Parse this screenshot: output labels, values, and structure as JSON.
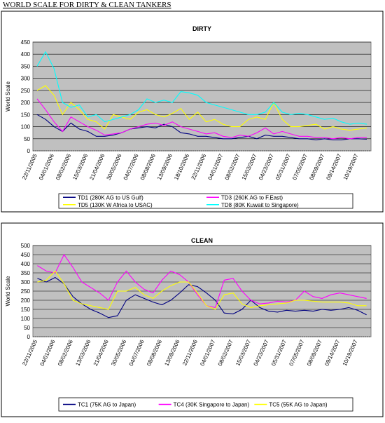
{
  "page_title": "WORLD SCALE FOR DIRTY & CLEAN TANKERS",
  "chart_data": [
    {
      "type": "line",
      "title": "DIRTY",
      "ylabel": "World Scale",
      "categories": [
        "22/11/2005",
        null,
        "04/01/2006",
        null,
        "08/02/2006",
        null,
        "15/03/2006",
        null,
        "21/04/2006",
        null,
        "30/05/2006",
        null,
        "04/07/2006",
        null,
        "08/08/2006",
        null,
        "13/09/2006",
        null,
        "18/10/2006",
        null,
        "22/11/2006",
        null,
        "04/01/2007",
        null,
        "08/02/2007",
        null,
        "15/03/2007",
        null,
        "04/23/2007",
        null,
        "05/31/2007",
        null,
        "07/05/2007",
        null,
        "08/09/2007",
        null,
        "09/14/2007",
        null,
        "10/19/2007",
        null
      ],
      "ylim": [
        0,
        450
      ],
      "yticks": [
        0,
        50,
        100,
        150,
        200,
        250,
        300,
        350,
        400,
        450
      ],
      "grid": true,
      "series": [
        {
          "name": "TD1 (280K AG to US Gulf)",
          "color": "#000080",
          "values": [
            150,
            130,
            100,
            80,
            115,
            90,
            80,
            60,
            60,
            65,
            75,
            90,
            95,
            100,
            95,
            110,
            100,
            75,
            70,
            60,
            60,
            55,
            50,
            50,
            55,
            60,
            50,
            65,
            60,
            60,
            55,
            50,
            50,
            45,
            50,
            45,
            45,
            50,
            50,
            48
          ]
        },
        {
          "name": "TD3 (260K AG to F.East)",
          "color": "#ff00ff",
          "values": [
            215,
            170,
            120,
            80,
            140,
            120,
            100,
            85,
            65,
            70,
            75,
            90,
            100,
            110,
            115,
            105,
            120,
            100,
            90,
            80,
            70,
            75,
            60,
            55,
            65,
            60,
            75,
            95,
            70,
            80,
            70,
            60,
            60,
            55,
            55,
            50,
            55,
            50,
            55,
            55
          ]
        },
        {
          "name": "TD5 (130K W Africa to USAC)",
          "color": "#ffff00",
          "values": [
            250,
            270,
            230,
            150,
            200,
            170,
            130,
            120,
            90,
            150,
            140,
            130,
            160,
            170,
            150,
            140,
            155,
            175,
            130,
            160,
            120,
            130,
            110,
            100,
            100,
            130,
            140,
            130,
            200,
            130,
            100,
            100,
            105,
            110,
            90,
            100,
            90,
            85,
            90,
            95
          ]
        },
        {
          "name": "TD8 (80K Kuwait to Singapore)",
          "color": "#00ffff",
          "values": [
            350,
            410,
            340,
            200,
            180,
            190,
            140,
            150,
            120,
            130,
            140,
            150,
            170,
            215,
            200,
            210,
            200,
            245,
            240,
            230,
            200,
            190,
            180,
            170,
            160,
            150,
            150,
            160,
            200,
            160,
            150,
            155,
            150,
            140,
            130,
            135,
            120,
            110,
            115,
            110
          ]
        }
      ]
    },
    {
      "type": "line",
      "title": "CLEAN",
      "ylabel": "World Scale",
      "categories": [
        "22/11/2005",
        null,
        "04/01/2006",
        null,
        "08/02/2006",
        null,
        "13/03/2006",
        null,
        "21/04/2006",
        null,
        "30/05/2006",
        null,
        "04/07/2006",
        null,
        "08/08/2006",
        null,
        "13/09/2006",
        null,
        "22/11/2006",
        null,
        "04/01/2007",
        null,
        "08/02/2007",
        null,
        "15/03/2007",
        null,
        "04/23/2007",
        null,
        "05/31/2007",
        null,
        "07/05/2007",
        null,
        "08/09/2007",
        null,
        "09/14/2007",
        null,
        "10/19/2007",
        null
      ],
      "ylim": [
        0,
        500
      ],
      "yticks": [
        0,
        50,
        100,
        150,
        200,
        250,
        300,
        350,
        400,
        450,
        500
      ],
      "grid": true,
      "series": [
        {
          "name": "TC1 (75K AG to Japan)",
          "color": "#000080",
          "values": [
            320,
            300,
            325,
            290,
            220,
            180,
            150,
            130,
            105,
            115,
            200,
            230,
            210,
            190,
            175,
            200,
            240,
            285,
            275,
            240,
            200,
            130,
            125,
            150,
            200,
            160,
            140,
            135,
            145,
            140,
            145,
            140,
            150,
            145,
            150,
            160,
            145,
            120
          ]
        },
        {
          "name": "TC4 (30K Singapore to Japan)",
          "color": "#ff00ff",
          "values": [
            390,
            360,
            350,
            450,
            380,
            300,
            270,
            240,
            200,
            300,
            360,
            300,
            260,
            240,
            310,
            360,
            340,
            300,
            230,
            170,
            160,
            310,
            320,
            250,
            200,
            180,
            185,
            195,
            190,
            200,
            250,
            220,
            210,
            230,
            240,
            230,
            220,
            210
          ]
        },
        {
          "name": "TC5 (55K AG to Japan)",
          "color": "#ffff00",
          "values": [
            300,
            310,
            360,
            290,
            200,
            180,
            170,
            160,
            150,
            250,
            250,
            270,
            230,
            210,
            250,
            280,
            300,
            300,
            240,
            170,
            150,
            230,
            240,
            180,
            160,
            170,
            175,
            180,
            185,
            200,
            200,
            195,
            190,
            190,
            190,
            185,
            170,
            170
          ]
        }
      ]
    }
  ]
}
